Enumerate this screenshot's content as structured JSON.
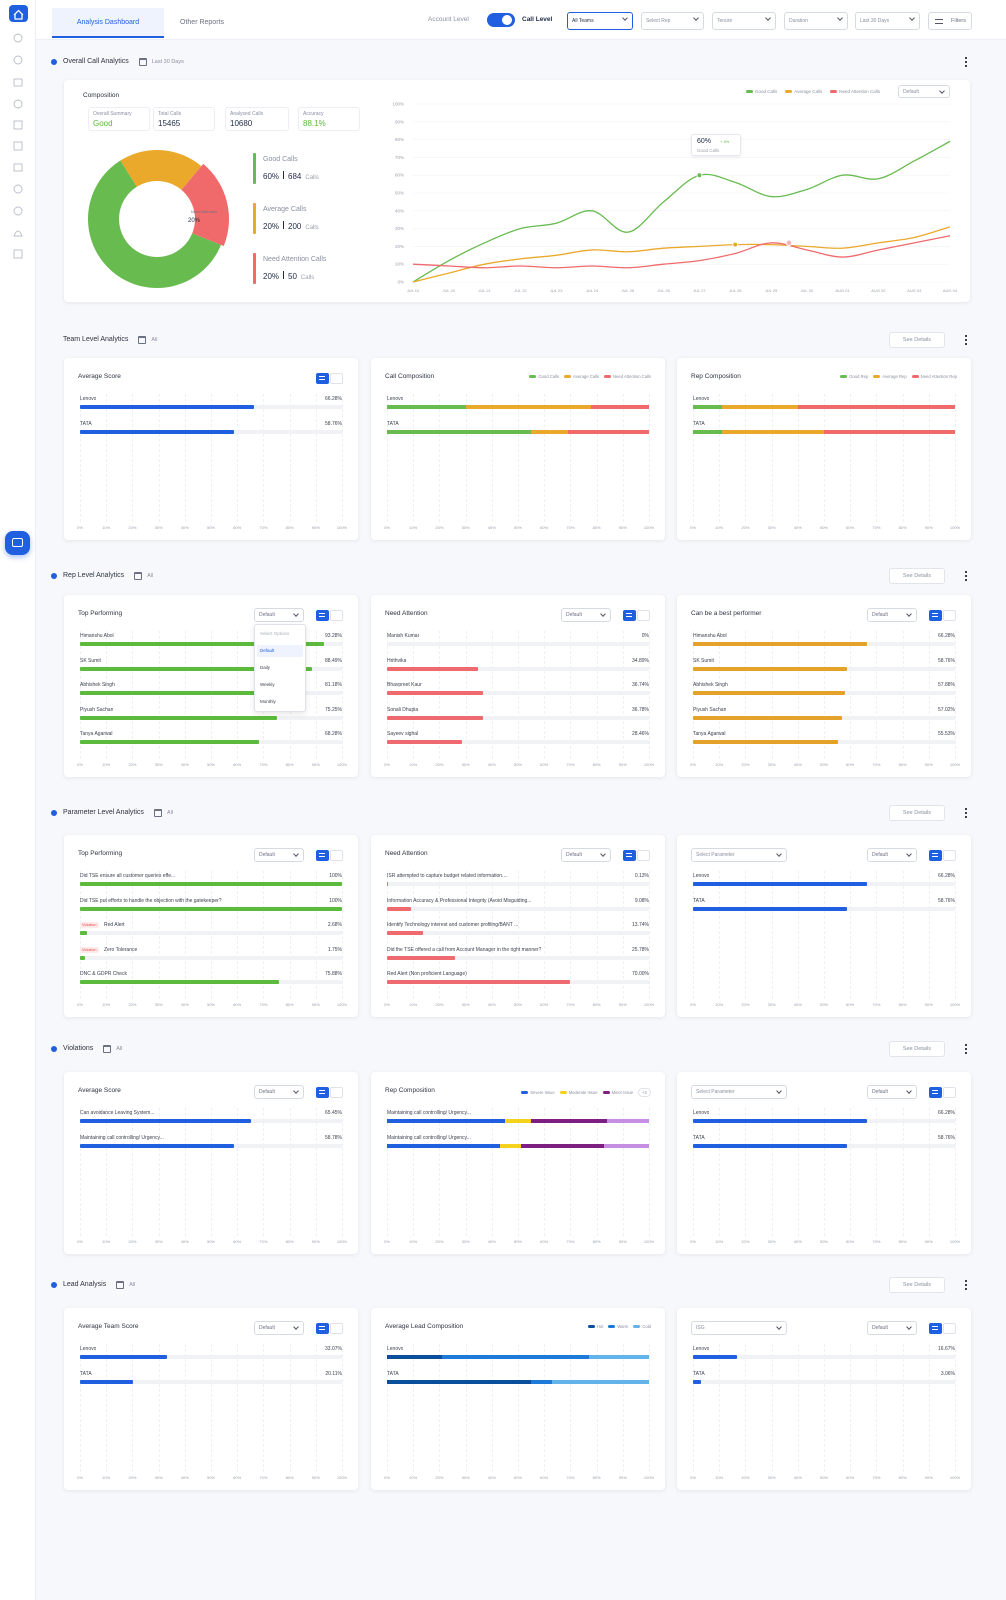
{
  "tabs": [
    "Analysis Dashboard",
    "Other Reports"
  ],
  "header": {
    "toggle_left": "Account Level",
    "toggle_right": "Call Level",
    "filters": [
      "All Teams",
      "Select Rep",
      "Tenure",
      "Duration",
      "Last 30 Days"
    ],
    "filter_button": "Filters"
  },
  "percent_ticks": [
    {
      "value": 0,
      "label": "0%"
    },
    {
      "value": 10,
      "label": "10%"
    },
    {
      "value": 20,
      "label": "20%"
    },
    {
      "value": 30,
      "label": "30%"
    },
    {
      "value": 40,
      "label": "40%"
    },
    {
      "value": 50,
      "label": "50%"
    },
    {
      "value": 60,
      "label": "60%"
    },
    {
      "value": 70,
      "label": "70%"
    },
    {
      "value": 80,
      "label": "80%"
    },
    {
      "value": 90,
      "label": "90%"
    },
    {
      "value": 100,
      "label": "100%"
    }
  ],
  "overview": {
    "title": "Overall Call Analytics",
    "date": "Last 30 Days",
    "composition": {
      "title": "Composition",
      "stats": [
        {
          "label": "Overall Summary",
          "value": "Good"
        },
        {
          "label": "Total Calls",
          "value": 15465
        },
        {
          "label": "Analysed Calls",
          "value": 10680
        },
        {
          "label": "Accuracy",
          "value": "88.1%"
        }
      ],
      "center": {
        "label": "Need Attention",
        "value": "20%"
      },
      "segments": [
        {
          "name": "Good Calls",
          "value": 60,
          "value_label": "60%",
          "count": 684,
          "unit": "Calls",
          "color": "#67bb4f"
        },
        {
          "name": "Average Calls",
          "value": 20,
          "value_label": "20%",
          "count": 200,
          "unit": "Calls",
          "color": "#eaa92b"
        },
        {
          "name": "Need Attention Calls",
          "value": 20,
          "value_label": "20%",
          "count": 50,
          "unit": "Calls",
          "color": "#f06a6c"
        }
      ]
    },
    "trend": {
      "type": "line",
      "dropdown": "Default",
      "categories": [
        "JUL 10",
        "JUL 20",
        "JUL 21",
        "JUL 22",
        "JUL 23",
        "JUL 24",
        "JUL 25",
        "JUL 26",
        "JUL 27",
        "JUL 28",
        "JUL 29",
        "JUL 30",
        "AUG 01",
        "AUG 02",
        "AUG 03",
        "AUG 04"
      ],
      "series": [
        {
          "name": "Good Calls",
          "color": "#67bb4f",
          "values": [
            0,
            12,
            22,
            30,
            33,
            40,
            28,
            45,
            60,
            56,
            48,
            52,
            60,
            58,
            68,
            79
          ]
        },
        {
          "name": "Average Calls",
          "color": "#eaa92b",
          "values": [
            0,
            5,
            10,
            13,
            15,
            18,
            17,
            19,
            20,
            21,
            21,
            20,
            19,
            22,
            25,
            31
          ]
        },
        {
          "name": "Need Attention Calls",
          "color": "#f06a6c",
          "values": [
            10,
            9,
            8,
            9,
            8,
            9,
            8,
            10,
            12,
            16,
            22,
            18,
            14,
            18,
            22,
            26
          ]
        }
      ],
      "ylim": [
        0,
        100
      ],
      "tooltip": {
        "value_label": "60%",
        "change": "+ 4%",
        "name": "Good Calls"
      }
    }
  },
  "sections": [
    {
      "title": "Team Level Analytics",
      "dot": false,
      "filter": "All",
      "action": "See Details",
      "cards": [
        {
          "title": "Average Score",
          "view_toggle": true,
          "color": "#1f5fe0",
          "rows": [
            {
              "label": "Lenovo",
              "value": 66.28,
              "value_label": "66.28%"
            },
            {
              "label": "TATA",
              "value": 58.76,
              "value_label": "58.76%"
            }
          ]
        },
        {
          "title": "Call Composition",
          "colors": [
            "#67bb4f",
            "#eaa92b",
            "#f06a6c"
          ],
          "legend": [
            "Good Calls",
            "Average Calls",
            "Need Attention Calls"
          ],
          "rows": [
            {
              "label": "Lenovo",
              "values": [
                30,
                48,
                22
              ]
            },
            {
              "label": "TATA",
              "values": [
                55,
                14,
                31
              ]
            }
          ]
        },
        {
          "title": "Rep Composition",
          "colors": [
            "#67bb4f",
            "#eaa92b",
            "#f06a6c"
          ],
          "legend": [
            "Good Rep",
            "Average Rep",
            "Need Attention Rep"
          ],
          "rows": [
            {
              "label": "Lenovo",
              "values": [
                11,
                29,
                60
              ]
            },
            {
              "label": "TATA",
              "values": [
                11,
                39,
                50
              ]
            }
          ]
        }
      ]
    },
    {
      "title": "Rep Level Analytics",
      "dot": true,
      "filter": "All",
      "action": "See Details",
      "cards": [
        {
          "title": "Top Performing",
          "dropdown": "Default",
          "menu": [
            "Select Options",
            "Default",
            "Daily",
            "Weekly",
            "Monthly"
          ],
          "view_toggle": true,
          "color": "#5cba3c",
          "rows": [
            {
              "label": "Himanshu Abol",
              "value": 93.28,
              "value_label": "93.28%"
            },
            {
              "label": "SK Sumit",
              "value": 88.49,
              "value_label": "88.49%"
            },
            {
              "label": "Abhishek Singh",
              "value": 81.18,
              "value_label": "81.18%"
            },
            {
              "label": "Piyush Sachan",
              "value": 75.25,
              "value_label": "75.25%"
            },
            {
              "label": "Tanya Agarwal",
              "value": 68.28,
              "value_label": "68.28%"
            }
          ]
        },
        {
          "title": "Need Attention",
          "dropdown": "Default",
          "view_toggle": true,
          "color": "#ef6a6e",
          "rows": [
            {
              "label": "Manish Kumar",
              "value": 0,
              "value_label": "0%"
            },
            {
              "label": "Hrithvika",
              "value": 34.89,
              "value_label": "34.89%"
            },
            {
              "label": "Bhavpreet Kaur",
              "value": 36.74,
              "value_label": "36.74%"
            },
            {
              "label": "Sonali Dhupia",
              "value": 36.78,
              "value_label": "36.78%"
            },
            {
              "label": "Sayeev sighal",
              "value": 28.46,
              "value_label": "28.46%"
            }
          ]
        },
        {
          "title": "Can be a best performer",
          "dropdown": "Default",
          "view_toggle": true,
          "color": "#e5a22b",
          "rows": [
            {
              "label": "Himanshu Abol",
              "value": 66.28,
              "value_label": "66.28%"
            },
            {
              "label": "SK Sumit",
              "value": 58.76,
              "value_label": "58.76%"
            },
            {
              "label": "Abhishek Singh",
              "value": 57.88,
              "value_label": "57.88%"
            },
            {
              "label": "Piyush Sachan",
              "value": 57.02,
              "value_label": "57.02%"
            },
            {
              "label": "Tanya Agarwal",
              "value": 55.53,
              "value_label": "55.53%"
            }
          ]
        }
      ]
    },
    {
      "title": "Parameter Level Analytics",
      "dot": true,
      "filter": "All",
      "action": "See Details",
      "cards": [
        {
          "title": "Top Performing",
          "dropdown": "Default",
          "view_toggle": true,
          "color": "#5cba3c",
          "rows": [
            {
              "label": "Did TSE ensure all customer queries effe...",
              "value": 100,
              "value_label": "100%"
            },
            {
              "label": "Did TSE put efforts to handle the objection with the gatekeeper?",
              "value": 100,
              "value_label": "100%"
            },
            {
              "tag": "Violation",
              "label": "Red Alert",
              "value": 2.68,
              "value_label": "2.68%"
            },
            {
              "tag": "Violation",
              "label": "Zero Tolerance",
              "value": 1.75,
              "value_label": "1.75%"
            },
            {
              "label": "DNC & GDPR Check",
              "value": 75.88,
              "value_label": "75.88%"
            }
          ]
        },
        {
          "title": "Need Attention",
          "dropdown": "Default",
          "view_toggle": true,
          "color": "#ef6a6e",
          "rows": [
            {
              "label": "ISR attempted to capture budget related information....",
              "value": 0.13,
              "value_label": "0.13%"
            },
            {
              "label": "Information Accuracy & Professional Integrity (Avoid Misguiding...",
              "value": 9.08,
              "value_label": "9.08%"
            },
            {
              "label": "Identify Technology interest and customer profiling/BANT ...",
              "value": 13.74,
              "value_label": "13.74%"
            },
            {
              "label": "Did the TSE offered a call from Account Manager in the right manner?",
              "value": 25.78,
              "value_label": "25.78%"
            },
            {
              "label": "Red Alert (Non proficient Language)",
              "value": 70,
              "value_label": "70.00%"
            }
          ]
        },
        {
          "select": "Select Parameter",
          "dropdown": "Default",
          "view_toggle": true,
          "color": "#1f5fe0",
          "rows": [
            {
              "label": "Lenovo",
              "value": 66.28,
              "value_label": "66.28%"
            },
            {
              "label": "TATA",
              "value": 58.76,
              "value_label": "58.76%"
            }
          ]
        }
      ]
    },
    {
      "title": "Violations",
      "dot": true,
      "filter": "All",
      "action": "See Details",
      "cards": [
        {
          "title": "Average Score",
          "dropdown": "Default",
          "view_toggle": true,
          "color": "#1f5fe0",
          "rows": [
            {
              "label": "Can avoidance Leaving System...",
              "value": 65.45,
              "value_label": "65.45%"
            },
            {
              "label": "Maintaining call controlling/ Urgency...",
              "value": 58.78,
              "value_label": "58.78%"
            }
          ]
        },
        {
          "title": "Rep Composition",
          "colors": [
            "#1f5fe0",
            "#f5d21e",
            "#7d1f80",
            "#c58ee2"
          ],
          "legend": [
            "Severe Issue",
            "Moderate Issue",
            "Minor Issue"
          ],
          "legend_more": "+2",
          "rows": [
            {
              "label": "Maintaining call controlling/ Urgency...",
              "values": [
                45,
                10,
                29,
                16
              ]
            },
            {
              "label": "Maintaining call controlling/ Urgency...",
              "values": [
                43,
                8,
                32,
                17
              ]
            }
          ]
        },
        {
          "select": "Select Parameter",
          "dropdown": "Default",
          "view_toggle": true,
          "color": "#1f5fe0",
          "rows": [
            {
              "label": "Lenovo",
              "value": 66.28,
              "value_label": "66.28%"
            },
            {
              "label": "TATA",
              "value": 58.76,
              "value_label": "58.76%"
            }
          ]
        }
      ]
    },
    {
      "title": "Lead Analysis",
      "dot": true,
      "filter": "All",
      "action": "See Details",
      "cards": [
        {
          "title": "Average Team Score",
          "dropdown": "Default",
          "view_toggle": true,
          "color": "#1f5fe0",
          "rows": [
            {
              "label": "Lenovo",
              "value": 33.07,
              "value_label": "33.07%"
            },
            {
              "label": "TATA",
              "value": 20.11,
              "value_label": "20.11%"
            }
          ]
        },
        {
          "title": "Average Lead Composition",
          "colors": [
            "#0b4f9c",
            "#1e7ad8",
            "#62b3ea"
          ],
          "legend": [
            "Hot",
            "Warm",
            "Cold"
          ],
          "rows": [
            {
              "label": "Lenovo",
              "values": [
                21,
                56,
                23
              ]
            },
            {
              "label": "TATA",
              "values": [
                55,
                8,
                37
              ]
            }
          ]
        },
        {
          "select": "ISG",
          "dropdown": "Default",
          "view_toggle": true,
          "color": "#1f5fe0",
          "rows": [
            {
              "label": "Lenovo",
              "value": 16.67,
              "value_label": "16.67%"
            },
            {
              "label": "TATA",
              "value": 3.06,
              "value_label": "3.06%"
            }
          ]
        }
      ]
    }
  ]
}
